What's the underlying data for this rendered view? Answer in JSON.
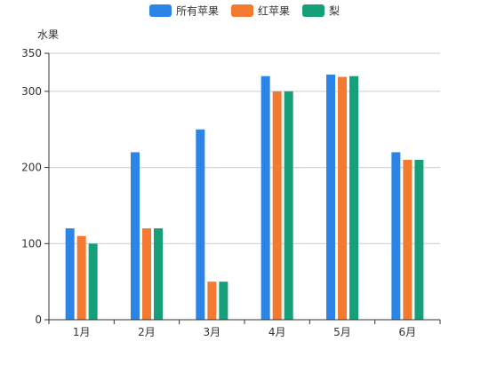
{
  "chart_data": {
    "type": "bar",
    "categories": [
      "1月",
      "2月",
      "3月",
      "4月",
      "5月",
      "6月"
    ],
    "series": [
      {
        "name": "所有苹果",
        "values": [
          120,
          220,
          250,
          320,
          322,
          220
        ],
        "color": "#2b84e6"
      },
      {
        "name": "红苹果",
        "values": [
          110,
          120,
          50,
          300,
          319,
          210
        ],
        "color": "#f57a31"
      },
      {
        "name": "梨",
        "values": [
          100,
          120,
          50,
          300,
          320,
          210
        ],
        "color": "#16a07a"
      }
    ],
    "title": "",
    "xlabel": "",
    "ylabel": "水果",
    "ylim": [
      0,
      350
    ],
    "yticks": [
      0,
      100,
      200,
      300,
      350
    ],
    "grid": true,
    "legend_position": "top-center",
    "axis_color": "#333333",
    "grid_color": "#cccccc"
  }
}
